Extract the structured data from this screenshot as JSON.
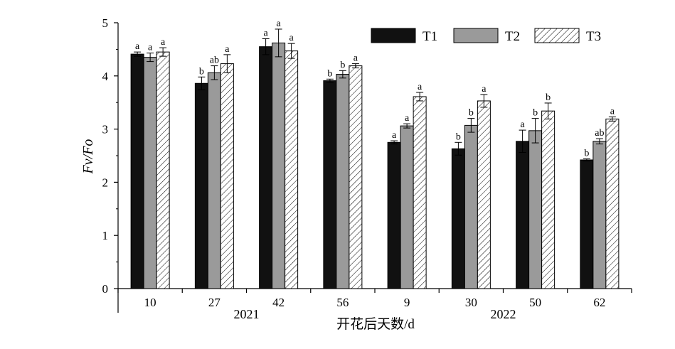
{
  "chart_data": {
    "type": "bar",
    "title": "",
    "ylabel": "Fv/Fo",
    "xlabel": "开花后天数/d",
    "ylim": [
      0,
      5
    ],
    "yticks": [
      "0",
      "1",
      "2",
      "3",
      "4",
      "5"
    ],
    "categories": [
      "10",
      "27",
      "42",
      "56",
      "9",
      "30",
      "50",
      "62"
    ],
    "groups": [
      {
        "label": "2021",
        "categories": [
          "10",
          "27",
          "42",
          "56"
        ]
      },
      {
        "label": "2022",
        "categories": [
          "9",
          "30",
          "50",
          "62"
        ]
      }
    ],
    "legend_position": "top-right",
    "series": [
      {
        "name": "T1",
        "fill": "solid-black",
        "values": [
          4.41,
          3.86,
          4.55,
          3.91,
          2.75,
          2.63,
          2.77,
          2.42
        ],
        "errors": [
          0.04,
          0.12,
          0.15,
          0.03,
          0.03,
          0.12,
          0.21,
          0.02
        ],
        "letters": [
          "a",
          "b",
          "a",
          "b",
          "a",
          "b",
          "a",
          "b"
        ]
      },
      {
        "name": "T2",
        "fill": "gray",
        "values": [
          4.35,
          4.06,
          4.62,
          4.03,
          3.06,
          3.07,
          2.97,
          2.77
        ],
        "errors": [
          0.08,
          0.13,
          0.26,
          0.07,
          0.04,
          0.13,
          0.23,
          0.05
        ],
        "letters": [
          "a",
          "ab",
          "a",
          "b",
          "a",
          "b",
          "b",
          "ab"
        ]
      },
      {
        "name": "T3",
        "fill": "hatched",
        "values": [
          4.45,
          4.23,
          4.47,
          4.19,
          3.61,
          3.53,
          3.34,
          3.19
        ],
        "errors": [
          0.08,
          0.17,
          0.14,
          0.04,
          0.08,
          0.12,
          0.15,
          0.04
        ],
        "letters": [
          "a",
          "a",
          "a",
          "a",
          "a",
          "a",
          "b",
          "a"
        ]
      }
    ]
  }
}
